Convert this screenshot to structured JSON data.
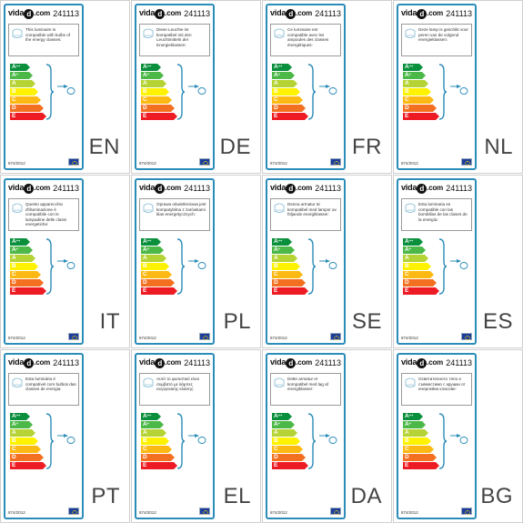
{
  "product_code": "241113",
  "logo": {
    "prefix": "vida",
    "d": "d",
    "suffix": ".com"
  },
  "regulation": "874/2012",
  "energy_classes": [
    {
      "label": "A",
      "sup": "++",
      "color": "#0a8f3c"
    },
    {
      "label": "A",
      "sup": "+",
      "color": "#4cb848"
    },
    {
      "label": "A",
      "sup": "",
      "color": "#b5d334"
    },
    {
      "label": "B",
      "sup": "",
      "color": "#fff200"
    },
    {
      "label": "C",
      "sup": "",
      "color": "#fdb913"
    },
    {
      "label": "D",
      "sup": "",
      "color": "#f37021"
    },
    {
      "label": "E",
      "sup": "",
      "color": "#ed1c24"
    }
  ],
  "cards": [
    {
      "lang": "EN",
      "text": "This luminaire is compatible with bulbs of the energy classes:"
    },
    {
      "lang": "DE",
      "text": "Diese Leuchte ist kompatibel mit den Leuchtmitteln der Energieklassen:"
    },
    {
      "lang": "FR",
      "text": "Ce luminaire est compatible avec les ampoules des classes énergétiques:"
    },
    {
      "lang": "NL",
      "text": "Deze lamp is geschikt voor peren van de volgend energieklassen:"
    },
    {
      "lang": "IT",
      "text": "Questo apparecchio d'illuminazione è compatibile con le lampadine delle classi energetiche:"
    },
    {
      "lang": "PL",
      "text": "Oprawa oświetleniowa jest kompatybilna z żarówkami klas energetycznych:"
    },
    {
      "lang": "SE",
      "text": "Denna armatur är kompatibel med lampor av följande energiklasser:"
    },
    {
      "lang": "ES",
      "text": "Esta luminaria es compatible con las bombillas de las clases de la energía:"
    },
    {
      "lang": "PT",
      "text": "Esta luminária é compatível com bulbos das classes de energia:"
    },
    {
      "lang": "EL",
      "text": "Αυτό το φωτιστικό είναι συμβατό με λάμπες ενεργειακής κλάσης:"
    },
    {
      "lang": "DA",
      "text": "Dette armatur er kompatibel med lag af energiklasser:"
    },
    {
      "lang": "BG",
      "text": "Осветителното тяло е съвместимо с крушки от енергийни класове:"
    }
  ]
}
